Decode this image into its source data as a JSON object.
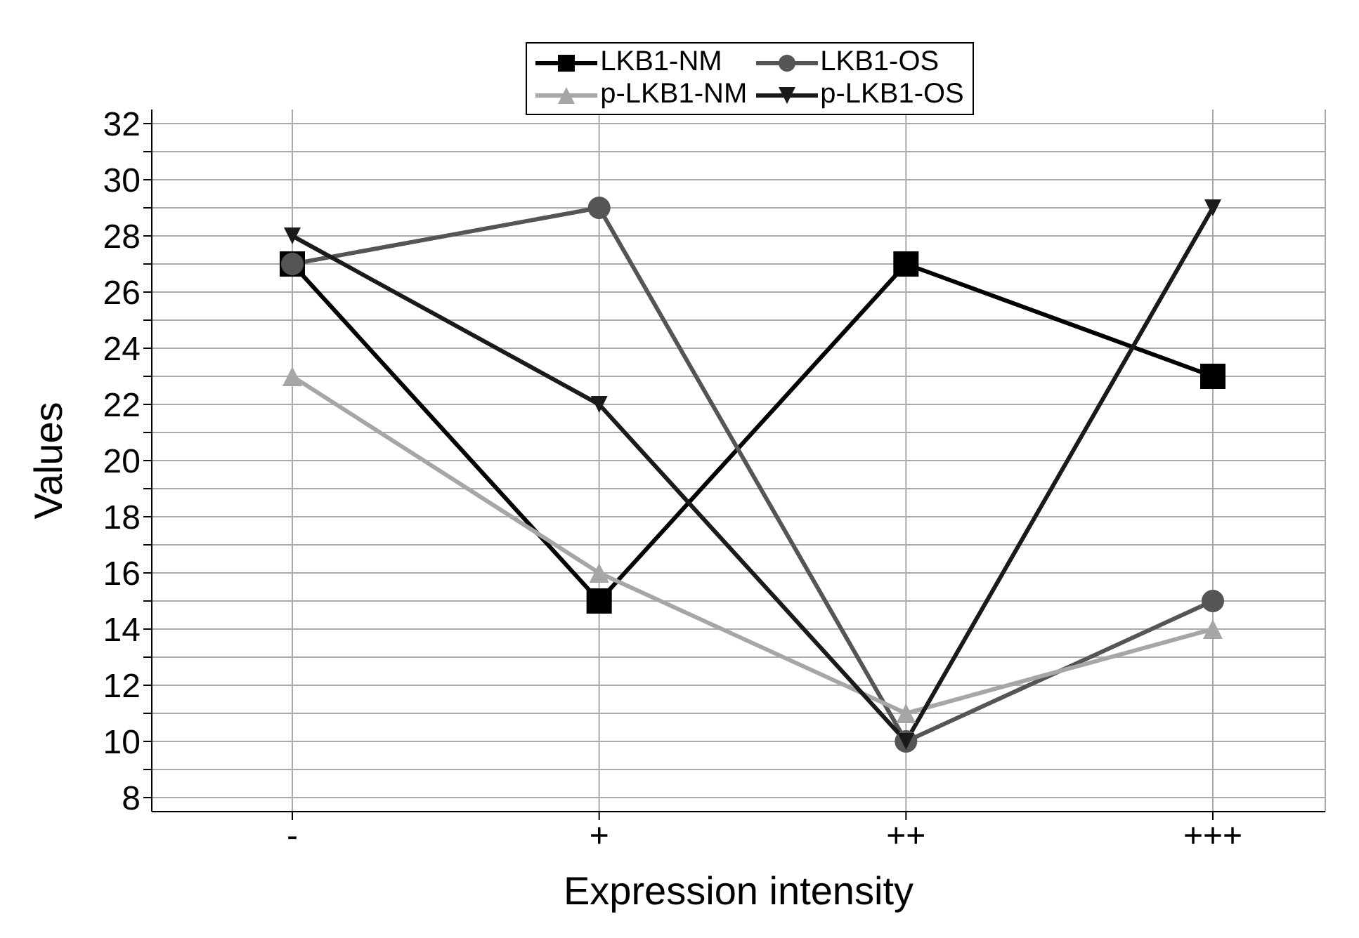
{
  "chart_data": {
    "type": "line",
    "xlabel": "Expression intensity",
    "ylabel": "Values",
    "categories": [
      "-",
      "+",
      "++",
      "+++"
    ],
    "series": [
      {
        "name": "LKB1-NM",
        "color": "#000000",
        "marker": "square",
        "values": [
          27,
          15,
          27,
          23
        ]
      },
      {
        "name": "LKB1-OS",
        "color": "#555555",
        "marker": "circle",
        "values": [
          27,
          29,
          10,
          15
        ]
      },
      {
        "name": "p-LKB1-NM",
        "color": "#a6a6a6",
        "marker": "triangle",
        "values": [
          23,
          16,
          11,
          14
        ]
      },
      {
        "name": "p-LKB1-OS",
        "color": "#1a1a1a",
        "marker": "triangle-down",
        "values": [
          28,
          22,
          10,
          29
        ]
      }
    ],
    "ylim": [
      7.5,
      32.5
    ],
    "yticks": [
      8,
      {
        "value": 9,
        "label": null
      },
      10,
      {
        "value": 11,
        "label": null
      },
      12,
      {
        "value": 13,
        "label": null
      },
      14,
      {
        "value": 15,
        "label": null
      },
      16,
      {
        "value": 17,
        "label": null
      },
      18,
      {
        "value": 19,
        "label": null
      },
      20,
      {
        "value": 21,
        "label": null
      },
      22,
      {
        "value": 23,
        "label": null
      },
      24,
      {
        "value": 25,
        "label": null
      },
      26,
      {
        "value": 27,
        "label": null
      },
      28,
      {
        "value": 29,
        "label": null
      },
      30,
      {
        "value": 31,
        "label": null
      },
      32
    ],
    "grid": true,
    "legend": "top",
    "line_style": "solid"
  }
}
